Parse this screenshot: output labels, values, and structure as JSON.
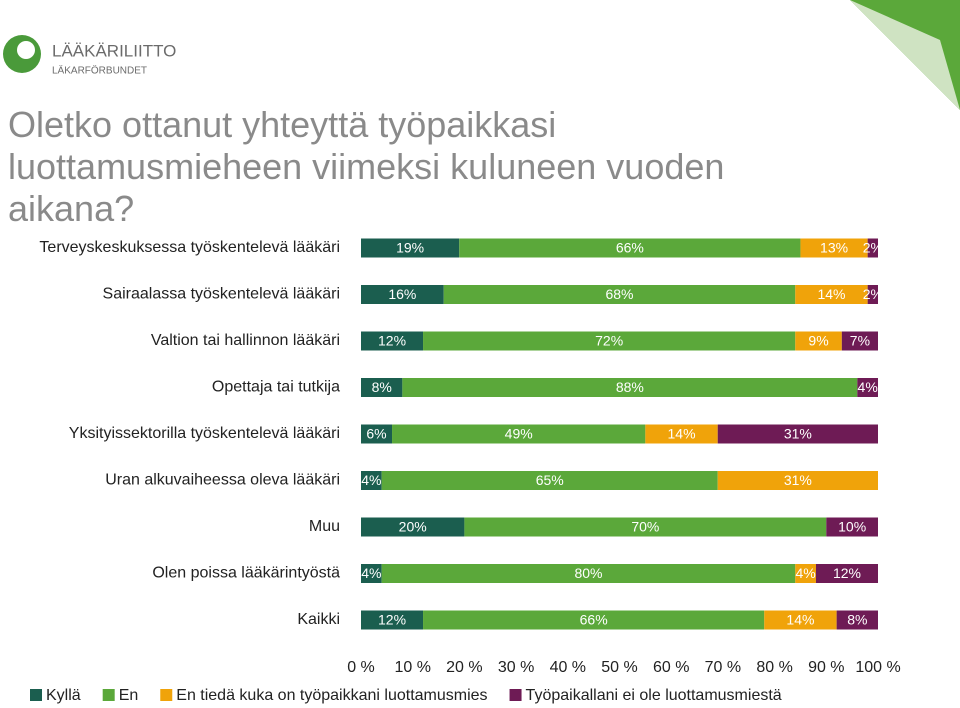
{
  "header": {
    "logo_name": "LÄÄKÄRILIITTO",
    "logo_subname": "LÄKARFÖRBUNDET"
  },
  "chart_data": {
    "type": "stacked-bar-horizontal",
    "title": "Oletko ottanut yhteyttä työpaikkasi luottamusmieheen viimeksi kuluneen vuoden aikana?",
    "categories": [
      "Terveyskeskuksessa työskentelevä lääkäri",
      "Sairaalassa työskentelevä lääkäri",
      "Valtion tai hallinnon lääkäri",
      "Opettaja tai tutkija",
      "Yksityissektorilla työskentelevä lääkäri",
      "Uran alkuvaiheessa oleva lääkäri",
      "Muu",
      "Olen poissa lääkärintyöstä",
      "Kaikki"
    ],
    "series": [
      {
        "name": "Kyllä",
        "color": "#1b5e4f",
        "values": [
          19,
          16,
          12,
          8,
          6,
          4,
          20,
          4,
          12
        ],
        "value_labels": [
          "19%",
          "16%",
          "12%",
          "8%",
          "6%",
          "4%",
          "20%",
          "4%",
          "12%"
        ]
      },
      {
        "name": "En",
        "color": "#5ba83a",
        "values": [
          66,
          68,
          72,
          88,
          49,
          65,
          70,
          80,
          66
        ],
        "value_labels": [
          "66%",
          "68%",
          "72%",
          "88%",
          "49%",
          "65%",
          "70%",
          "80%",
          "66%"
        ]
      },
      {
        "name": "En tiedä kuka on työpaikkani luottamusmies",
        "color": "#f0a30a",
        "values": [
          13,
          14,
          9,
          null,
          14,
          31,
          null,
          4,
          14
        ],
        "value_labels": [
          "13%",
          "14%",
          "9%",
          null,
          "14%",
          "31%",
          null,
          "4%",
          "14%"
        ]
      },
      {
        "name": "Työpaikallani ei ole luottamusmiestä",
        "color": "#6e1b55",
        "values": [
          2,
          2,
          7,
          4,
          31,
          null,
          10,
          12,
          8
        ],
        "value_labels": [
          "2%",
          "2%",
          "7%",
          "4%",
          "31%",
          null,
          "10%",
          "12%",
          "8%"
        ]
      }
    ],
    "xlim": [
      0,
      100
    ],
    "xticks": [
      {
        "value": 0,
        "label": "0 %"
      },
      {
        "value": 10,
        "label": "10 %"
      },
      {
        "value": 20,
        "label": "20 %"
      },
      {
        "value": 30,
        "label": "30 %"
      },
      {
        "value": 40,
        "label": "40 %"
      },
      {
        "value": 50,
        "label": "50 %"
      },
      {
        "value": 60,
        "label": "60 %"
      },
      {
        "value": 70,
        "label": "70 %"
      },
      {
        "value": 80,
        "label": "80 %"
      },
      {
        "value": 90,
        "label": "90 %"
      },
      {
        "value": 100,
        "label": "100 %"
      }
    ]
  }
}
